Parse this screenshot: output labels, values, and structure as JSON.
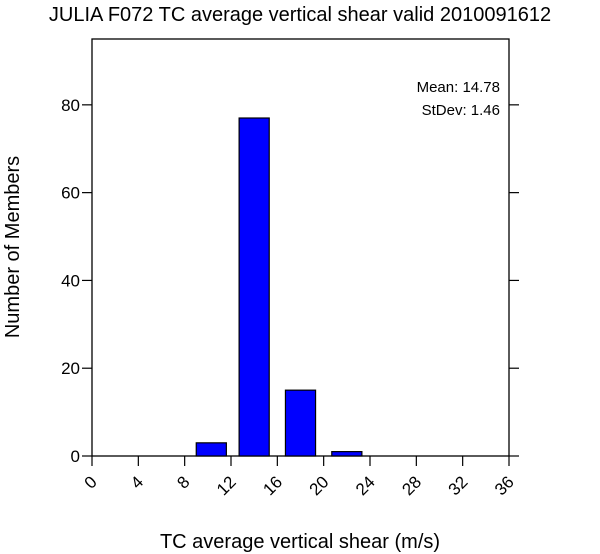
{
  "chart_data": {
    "type": "bar",
    "title": "JULIA F072 TC average vertical shear valid 2010091612",
    "xlabel": "TC average vertical shear (m/s)",
    "ylabel": "Number of Members",
    "xlim": [
      0,
      36
    ],
    "ylim": [
      0,
      95
    ],
    "x_ticks": [
      0,
      4,
      8,
      12,
      16,
      20,
      24,
      28,
      32,
      36
    ],
    "y_ticks": [
      0,
      20,
      40,
      60,
      80
    ],
    "bins": [
      {
        "start": 9,
        "end": 11.6,
        "value": 3
      },
      {
        "start": 12.7,
        "end": 15.3,
        "value": 77
      },
      {
        "start": 16.7,
        "end": 19.3,
        "value": 15
      },
      {
        "start": 20.7,
        "end": 23.3,
        "value": 1
      }
    ],
    "bar_color": "#0000ff",
    "stats": {
      "mean": "Mean: 14.78",
      "stdev": "StDev: 1.46"
    }
  }
}
